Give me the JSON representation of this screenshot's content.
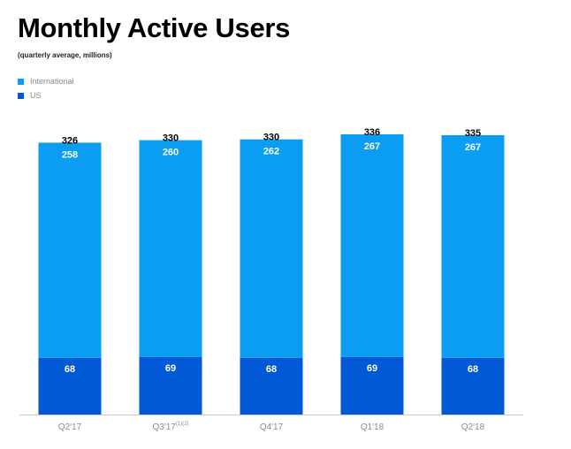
{
  "colors": {
    "international": "#0a9df2",
    "us": "#0259d6",
    "axis": "#cccccc"
  },
  "chart_data": {
    "type": "bar",
    "stacked": true,
    "title": "Monthly Active Users",
    "subtitle": "(quarterly average, millions)",
    "xlabel": "",
    "ylabel": "",
    "legend_position": "top-left",
    "grid": false,
    "categories": [
      "Q2'17",
      "Q3'17",
      "Q4'17",
      "Q1'18",
      "Q2'18"
    ],
    "category_superscripts": [
      "",
      "(1)(2)",
      "",
      "",
      ""
    ],
    "series": [
      {
        "name": "US",
        "values": [
          68,
          69,
          68,
          69,
          68
        ]
      },
      {
        "name": "International",
        "values": [
          258,
          260,
          262,
          267,
          267
        ]
      }
    ],
    "totals": [
      326,
      330,
      330,
      336,
      335
    ],
    "ylim": [
      0,
      336
    ]
  }
}
